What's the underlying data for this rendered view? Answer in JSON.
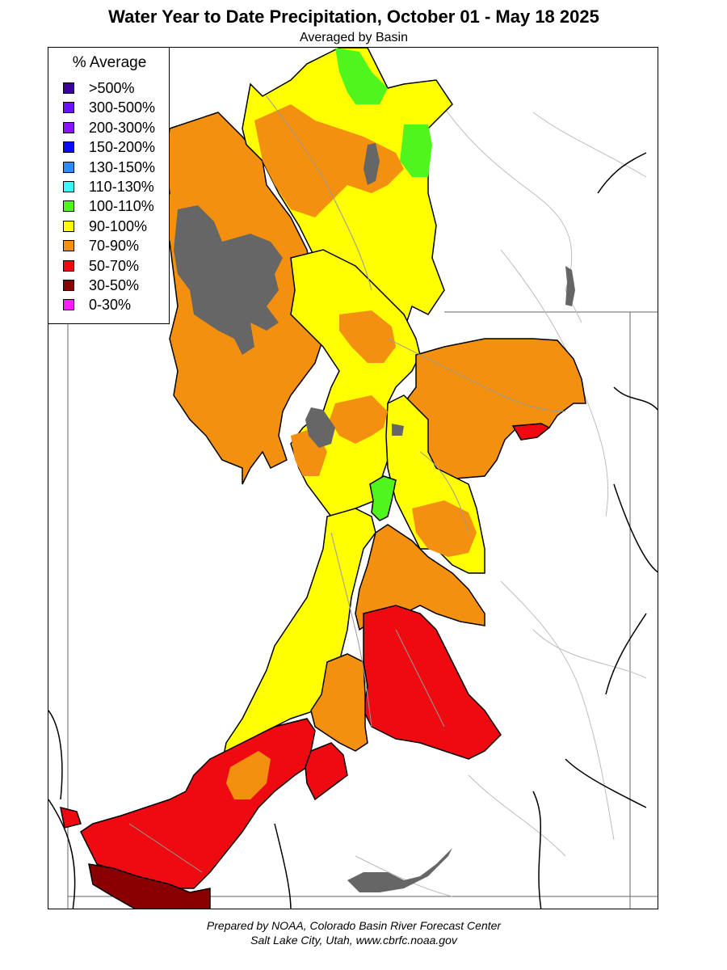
{
  "title": "Water Year to Date Precipitation, October 01  - May 18 2025",
  "subtitle": "Averaged by Basin",
  "legend": {
    "title": "% Average",
    "items": [
      {
        "label": ">500%",
        "color": "#3c0096"
      },
      {
        "label": "300-500%",
        "color": "#6a12ff"
      },
      {
        "label": "200-300%",
        "color": "#8a14ff"
      },
      {
        "label": "150-200%",
        "color": "#0a0aff"
      },
      {
        "label": "130-150%",
        "color": "#2e8bff"
      },
      {
        "label": "110-130%",
        "color": "#3df7ff"
      },
      {
        "label": "100-110%",
        "color": "#50f51e"
      },
      {
        "label": "90-100%",
        "color": "#ffff00"
      },
      {
        "label": "70-90%",
        "color": "#f3900f"
      },
      {
        "label": "50-70%",
        "color": "#ee0a10"
      },
      {
        "label": "30-50%",
        "color": "#8a0000"
      },
      {
        "label": "0-30%",
        "color": "#ff1aff"
      }
    ]
  },
  "colors": {
    "no_data": "#666666",
    "basin_outline": "#000000",
    "rivers": "#9a9a9a",
    "state_lines": "#666666"
  },
  "footer": {
    "line1": "Prepared by NOAA, Colorado Basin River Forecast Center",
    "line2": "Salt Lake City, Utah, www.cbrfc.noaa.gov"
  }
}
